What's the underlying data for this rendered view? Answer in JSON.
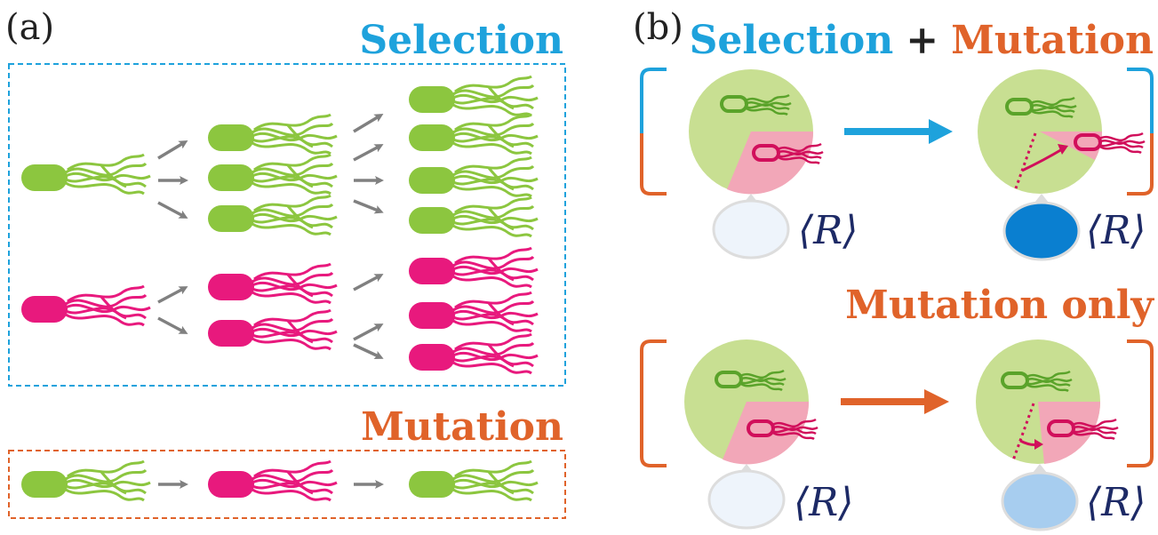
{
  "colors": {
    "selection": "#1ea2dc",
    "mutation": "#e0632a",
    "green_cell": "#8cc63f",
    "pink_cell": "#e8197d",
    "arrow_gray": "#808080",
    "pie_green": "#c8df92",
    "pie_pink": "#f2a7b8",
    "bubble_empty": "#eef4fb",
    "bubble_dark": "#0a7fd0",
    "bubble_light": "#a7cdef"
  },
  "panel_a": {
    "label": "(a)",
    "selection_title": "Selection",
    "mutation_title": "Mutation"
  },
  "panel_b": {
    "label": "(b)",
    "selection_word": "Selection",
    "plus": "+",
    "mutation_word": "Mutation",
    "mutation_only_title": "Mutation only",
    "avg_symbol": "⟨R⟩"
  },
  "icons": [
    "green-bacterium-icon",
    "pink-bacterium-icon",
    "arrow-icon",
    "bracket-icon",
    "speech-bubble-icon"
  ]
}
